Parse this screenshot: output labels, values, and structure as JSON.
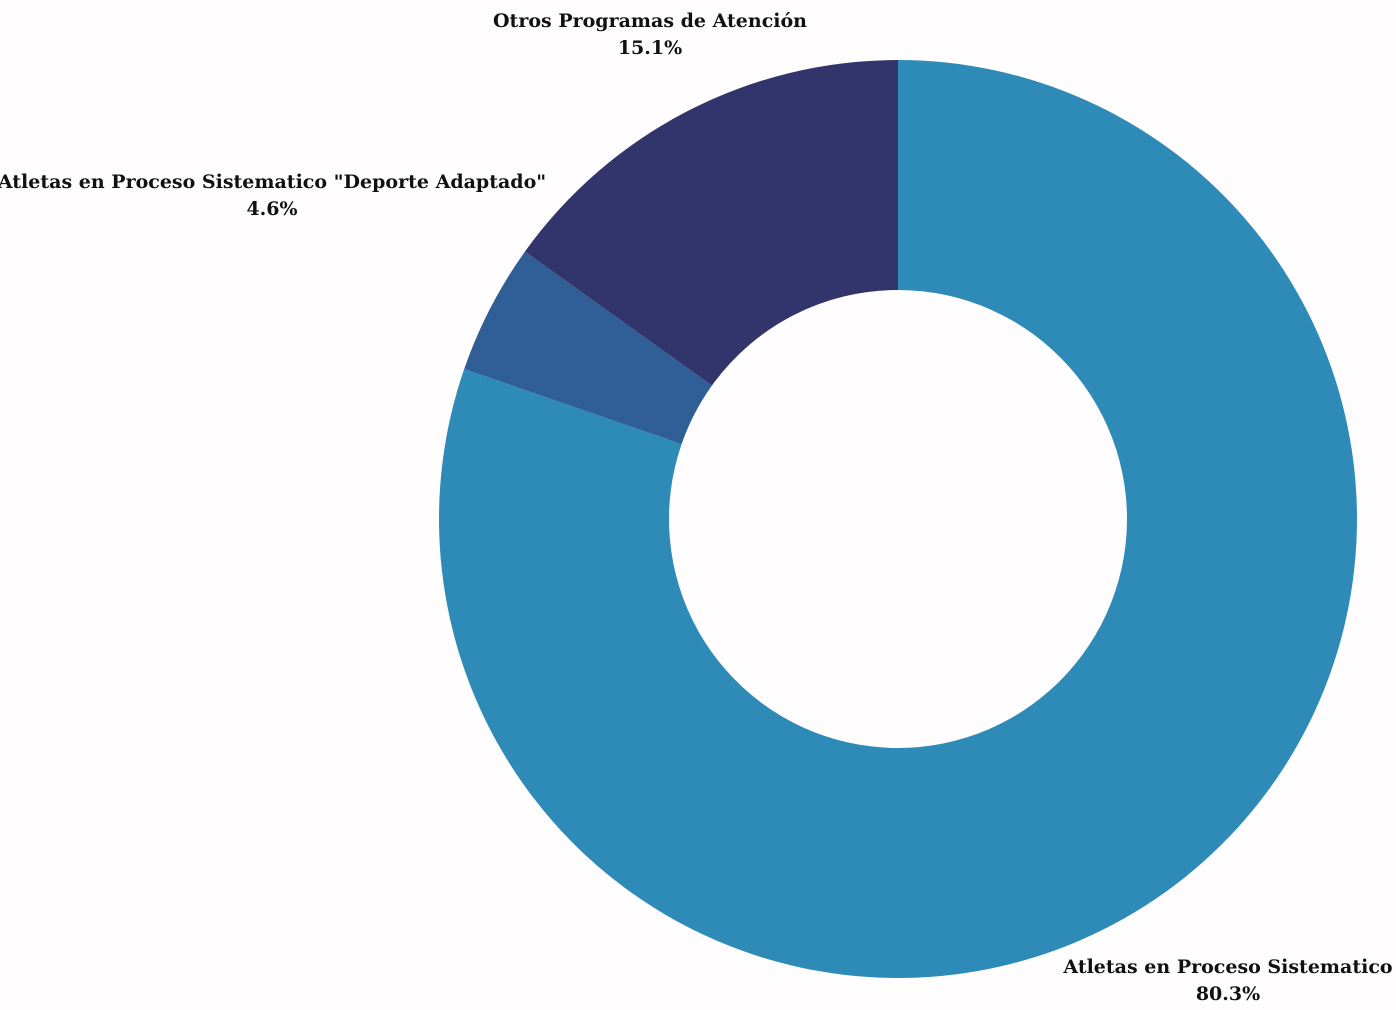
{
  "chart_data": {
    "type": "pie",
    "donut": true,
    "categories": [
      "Atletas en Proceso Sistematico",
      "Atletas en Proceso Sistematico \"Deporte Adaptado\"",
      "Otros Programas de Atención"
    ],
    "values": [
      80.3,
      4.6,
      15.1
    ],
    "value_labels": [
      "80.3%",
      "4.6%",
      "15.1%"
    ],
    "colors": [
      "#2e8bb8",
      "#2f5f96",
      "#31356b"
    ],
    "start_angle": "12 o'clock",
    "direction": "clockwise",
    "label_style": "outside, name above percentage"
  }
}
